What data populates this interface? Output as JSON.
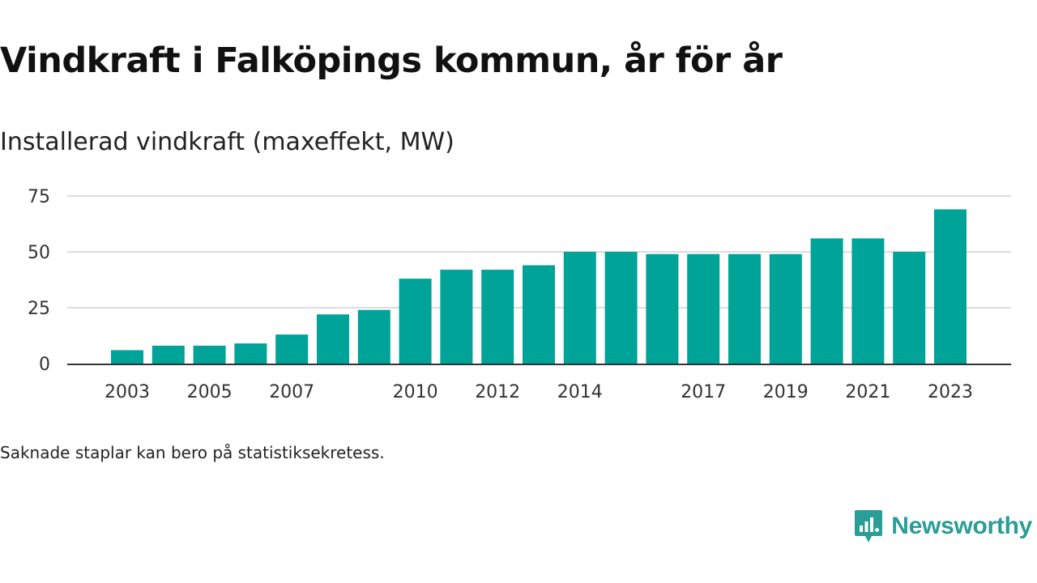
{
  "title": "Vindkraft i Falköpings kommun, år för år",
  "subtitle": "Installerad vindkraft (maxeffekt, MW)",
  "note": "Saknade staplar kan bero på statistiksekretess.",
  "brand": {
    "name": "Newsworthy",
    "icon": "newsworthy-logo-icon",
    "color": "#2a9d96"
  },
  "colors": {
    "bar": "#00a398",
    "grid": "#dddddd",
    "axis": "#333333",
    "tick_text": "#333333"
  },
  "chart_data": {
    "type": "bar",
    "title": "Installerad vindkraft (maxeffekt, MW)",
    "xlabel": "",
    "ylabel": "",
    "categories": [
      2003,
      2004,
      2005,
      2006,
      2007,
      2008,
      2009,
      2010,
      2011,
      2012,
      2013,
      2014,
      2015,
      2016,
      2017,
      2018,
      2019,
      2020,
      2021,
      2022,
      2023
    ],
    "values": [
      6,
      8,
      8,
      9,
      13,
      22,
      24,
      38,
      42,
      42,
      44,
      50,
      50,
      49,
      49,
      49,
      49,
      56,
      56,
      50,
      69
    ],
    "x_tick_labels": [
      "2003",
      "2005",
      "2007",
      "2010",
      "2012",
      "2014",
      "2017",
      "2019",
      "2021",
      "2023"
    ],
    "y_ticks": [
      0,
      25,
      50,
      75
    ],
    "ylim": [
      0,
      75
    ],
    "grid": true
  }
}
